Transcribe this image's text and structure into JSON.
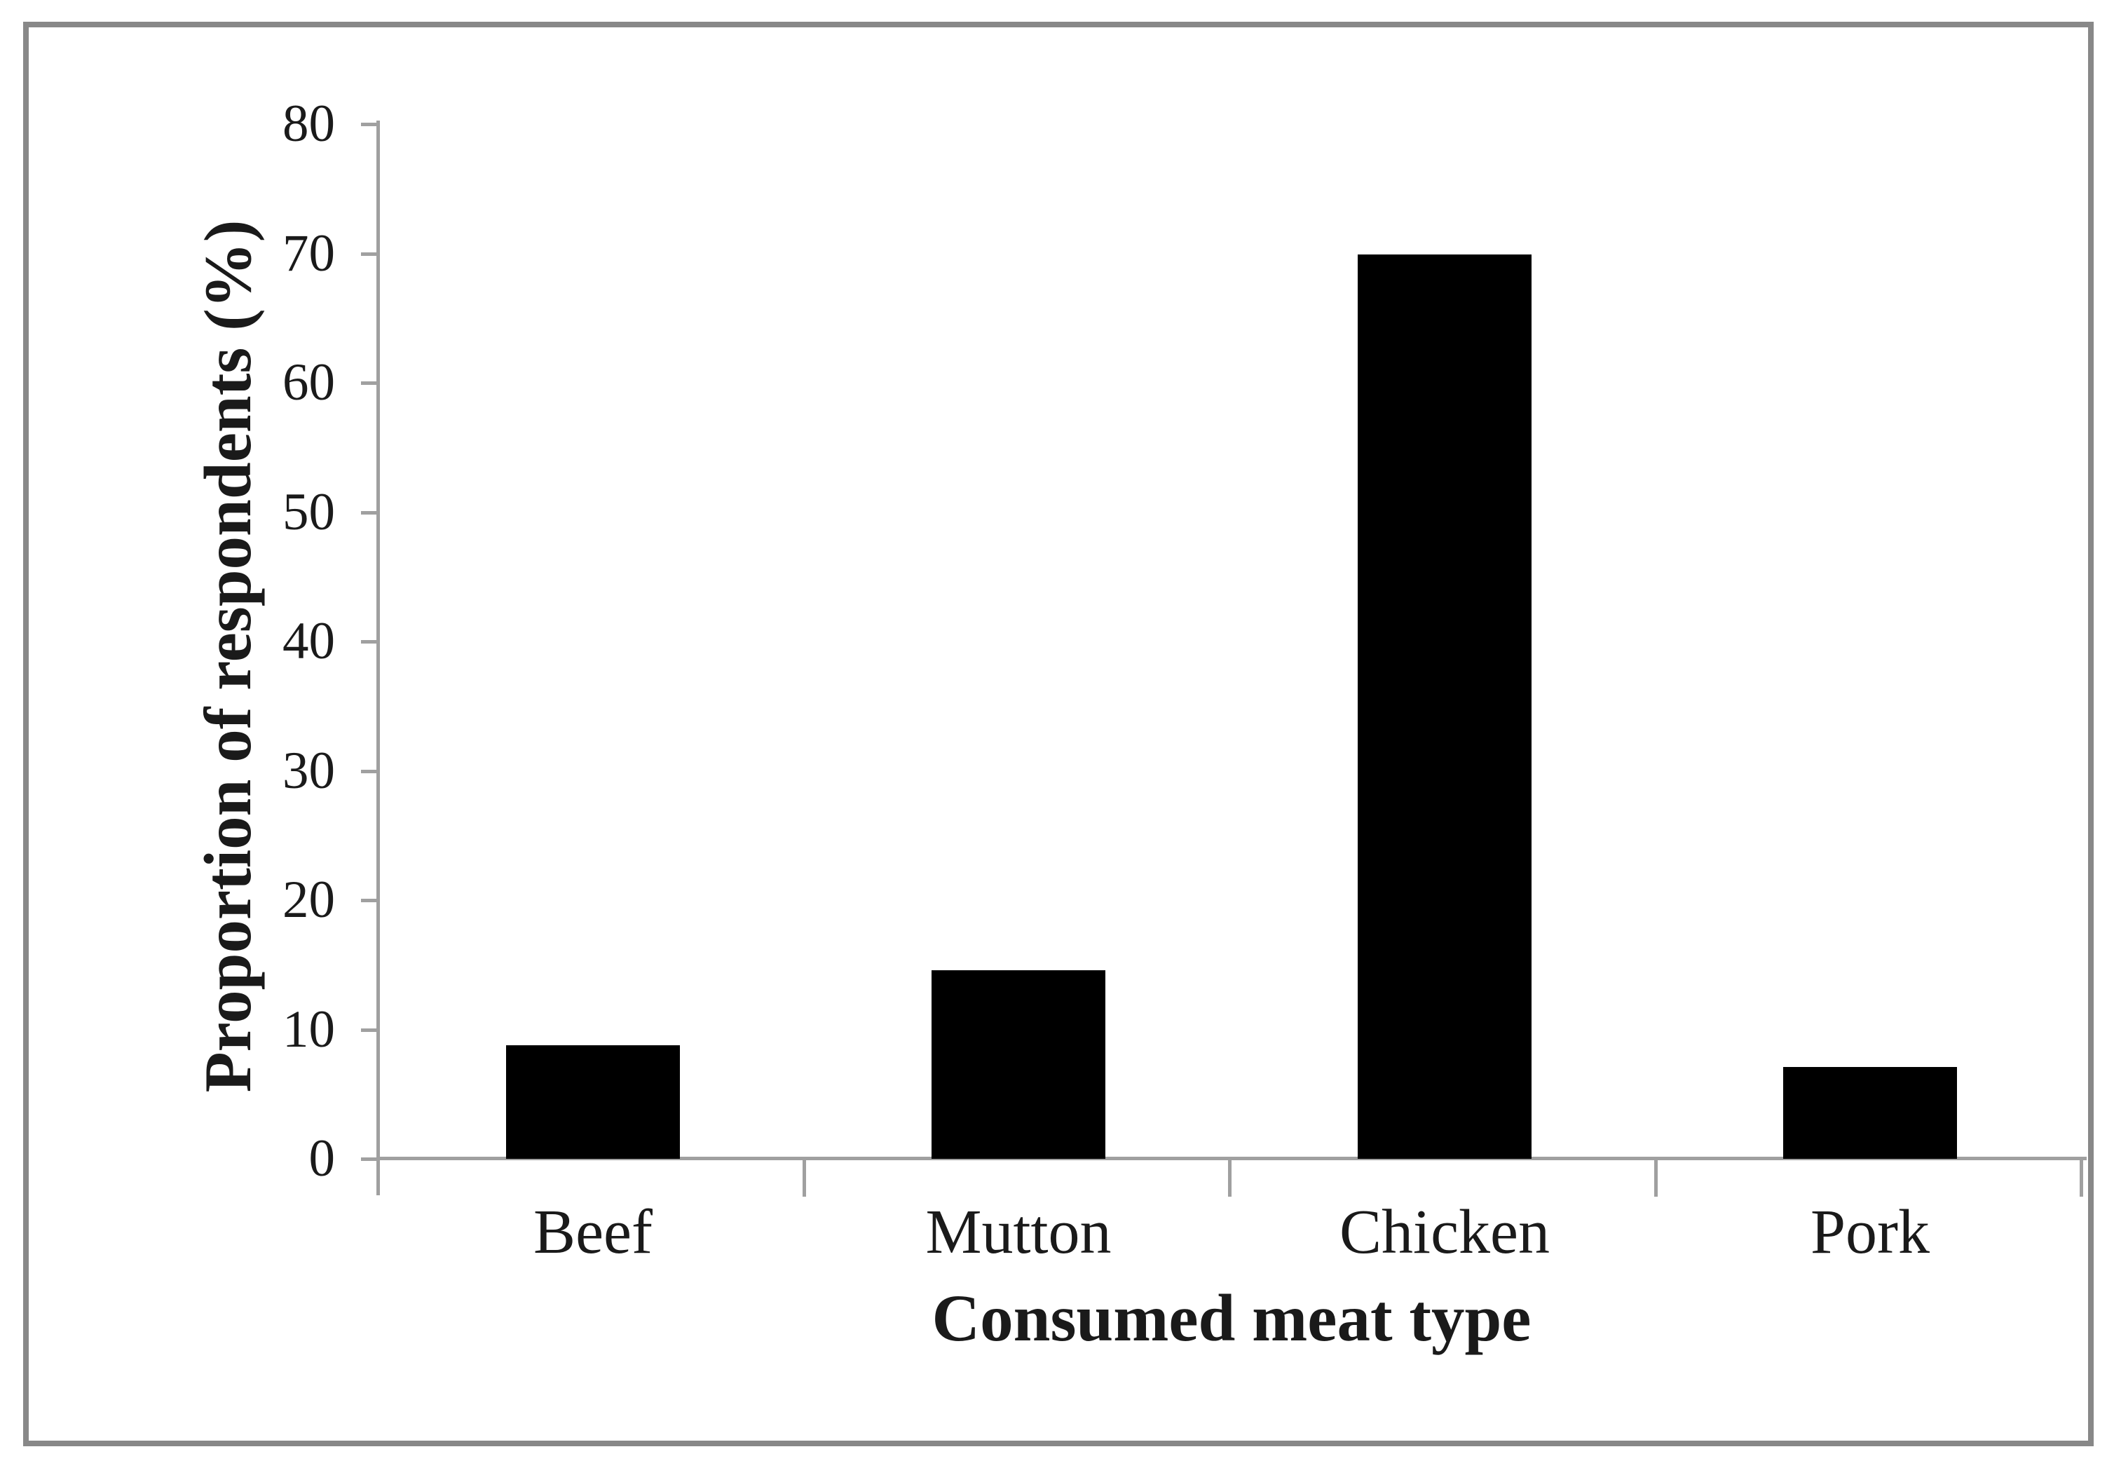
{
  "chart_data": {
    "type": "bar",
    "title": "",
    "categories": [
      "Beef",
      "Mutton",
      "Chicken",
      "Pork"
    ],
    "values": [
      8.8,
      14.6,
      69.9,
      7.1
    ],
    "series": [
      {
        "name": "Proportion of respondents",
        "values": [
          8.8,
          14.6,
          69.9,
          7.1
        ]
      }
    ],
    "xlabel": "Consumed meat type",
    "ylabel": "Proportion of respondents (%)",
    "ylim": [
      0,
      80
    ],
    "yticks": [
      0,
      10,
      20,
      30,
      40,
      50,
      60,
      70,
      80
    ],
    "grid": false,
    "legend_position": "none",
    "bar_color": "#000000",
    "axis_color": "#a0a0a0",
    "frame_color": "#888888",
    "text_color": "#1a1a1a",
    "background_color": "#ffffff"
  }
}
